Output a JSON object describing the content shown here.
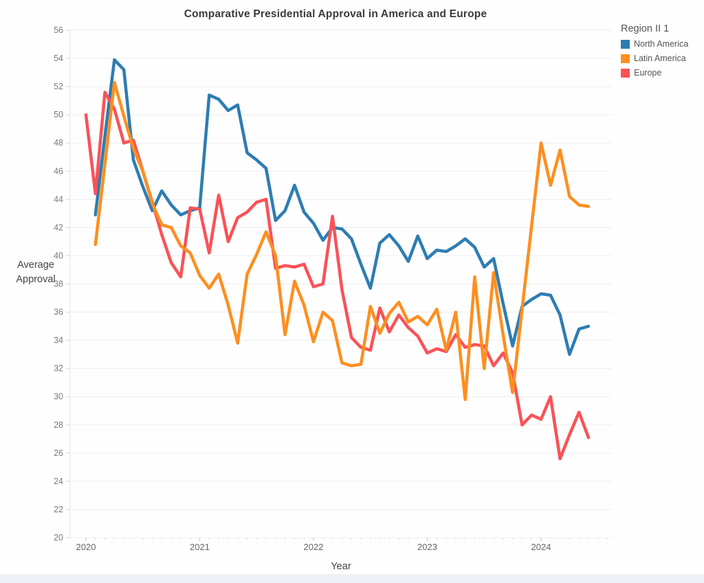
{
  "title": "Comparative Presidential Approval in America and Europe",
  "legend": {
    "title": "Region II 1",
    "items": [
      "North America",
      "Latin America",
      "Europe"
    ]
  },
  "chart_data": {
    "type": "line",
    "title": "Comparative Presidential Approval in America and Europe",
    "xlabel": "Year",
    "ylabel": "Average Approval",
    "ylim": [
      20,
      56
    ],
    "ytick_step": 2,
    "x_ticks": [
      2020,
      2021,
      2022,
      2023,
      2024
    ],
    "x_unit": "month",
    "grid": true,
    "legend_position": "top-right",
    "series": [
      {
        "name": "North America",
        "color": "#2d7db2",
        "start": "2020-02",
        "values": [
          42.9,
          48.5,
          53.9,
          53.2,
          46.8,
          44.9,
          43.2,
          44.6,
          43.6,
          42.9,
          43.2,
          43.4,
          51.4,
          51.1,
          50.3,
          50.7,
          47.3,
          46.8,
          46.2,
          42.5,
          43.2,
          45.0,
          43.1,
          42.3,
          41.1,
          42.0,
          41.9,
          41.2,
          39.4,
          37.7,
          40.9,
          41.5,
          40.7,
          39.6,
          41.4,
          39.8,
          40.4,
          40.3,
          40.7,
          41.2,
          40.6,
          39.2,
          39.8,
          36.6,
          33.6,
          36.4,
          36.9,
          37.3,
          37.2,
          35.8,
          33.0,
          34.8,
          35.0
        ]
      },
      {
        "name": "Latin America",
        "color": "#fd8f20",
        "start": "2020-02",
        "values": [
          40.8,
          46.5,
          52.3,
          49.9,
          47.6,
          46.0,
          43.7,
          42.2,
          42.0,
          40.7,
          40.2,
          38.6,
          37.7,
          38.7,
          36.5,
          33.8,
          38.7,
          40.1,
          41.7,
          40.0,
          34.4,
          38.2,
          36.5,
          33.9,
          36.0,
          35.4,
          32.4,
          32.2,
          32.3,
          36.4,
          34.5,
          35.9,
          36.7,
          35.3,
          35.7,
          35.1,
          36.2,
          33.3,
          36.0,
          29.8,
          38.5,
          32.0,
          38.8,
          34.4,
          30.3,
          36.2,
          42.1,
          48.0,
          45.0,
          47.5,
          44.2,
          43.6,
          43.5
        ]
      },
      {
        "name": "Europe",
        "color": "#fa5257",
        "start": "2020-01",
        "values": [
          50.0,
          44.4,
          51.6,
          50.4,
          48.0,
          48.2,
          46.0,
          43.8,
          41.5,
          39.5,
          38.5,
          43.4,
          43.3,
          40.2,
          44.3,
          41.0,
          42.7,
          43.1,
          43.8,
          44.0,
          39.1,
          39.3,
          39.2,
          39.4,
          37.8,
          38.0,
          42.8,
          37.6,
          34.2,
          33.5,
          33.3,
          36.3,
          34.6,
          35.8,
          34.9,
          34.3,
          33.1,
          33.4,
          33.2,
          34.4,
          33.5,
          33.7,
          33.6,
          32.2,
          33.1,
          31.7,
          28.0,
          28.7,
          28.4,
          30.0,
          25.6,
          27.3,
          28.9,
          27.1
        ]
      }
    ]
  }
}
